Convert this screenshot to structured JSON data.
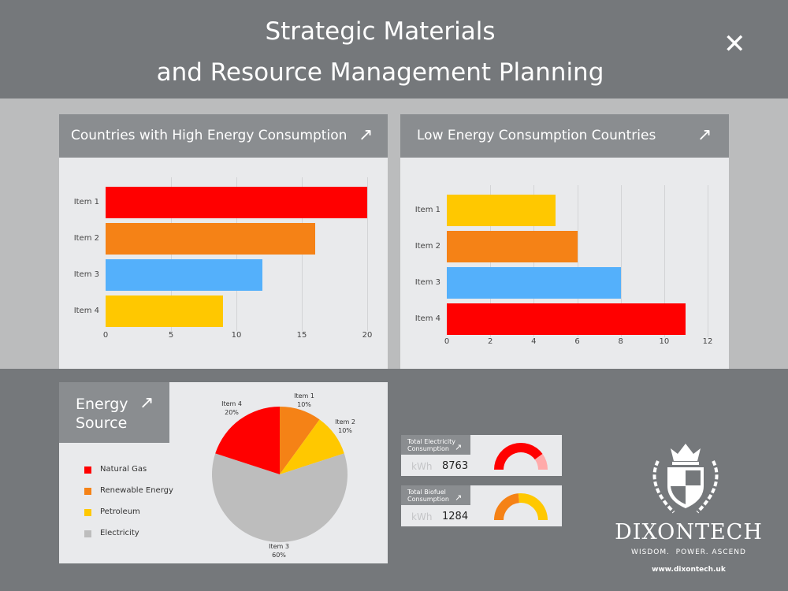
{
  "header": {
    "title_line1": "Strategic Materials",
    "title_line2": "and Resource Management Planning",
    "close_icon": "close-icon"
  },
  "colors": {
    "red": "#ff0000",
    "orange": "#f58216",
    "blue": "#54b0fb",
    "yellow": "#ffc800",
    "gray": "#bdbdbd",
    "light_red": "#ffaaaa"
  },
  "chart_data": [
    {
      "type": "bar",
      "orientation": "horizontal",
      "title": "Countries with High Energy Consumption",
      "categories": [
        "Item 1",
        "Item 2",
        "Item 3",
        "Item 4"
      ],
      "values": [
        20,
        16,
        12,
        9
      ],
      "colors": [
        "#ff0000",
        "#f58216",
        "#54b0fb",
        "#ffc800"
      ],
      "xlim": [
        0,
        20
      ],
      "xticks": [
        0,
        5,
        10,
        15,
        20
      ],
      "grid": true
    },
    {
      "type": "bar",
      "orientation": "horizontal",
      "title": "Low Energy Consumption Countries",
      "categories": [
        "Item 1",
        "Item 2",
        "Item 3",
        "Item 4"
      ],
      "values": [
        5,
        6,
        8,
        11
      ],
      "colors": [
        "#ffc800",
        "#f58216",
        "#54b0fb",
        "#ff0000"
      ],
      "xlim": [
        0,
        12
      ],
      "xticks": [
        0,
        2,
        4,
        6,
        8,
        10,
        12
      ],
      "grid": true
    },
    {
      "type": "pie",
      "title": "Energy Source",
      "slices": [
        {
          "label": "Item 1",
          "value": 10,
          "pct": "10%",
          "color": "#f58216"
        },
        {
          "label": "Item 2",
          "value": 10,
          "pct": "10%",
          "color": "#ffc800"
        },
        {
          "label": "Item 3",
          "value": 60,
          "pct": "60%",
          "color": "#bdbdbd"
        },
        {
          "label": "Item 4",
          "value": 20,
          "pct": "20%",
          "color": "#ff0000"
        }
      ],
      "legend": [
        {
          "label": "Natural Gas",
          "color": "#ff0000"
        },
        {
          "label": "Renewable Energy",
          "color": "#f58216"
        },
        {
          "label": "Petroleum",
          "color": "#ffc800"
        },
        {
          "label": "Electricity",
          "color": "#bdbdbd"
        }
      ]
    }
  ],
  "panels": {
    "energy_title_1": "Energy",
    "energy_title_2": "Source"
  },
  "kpis": [
    {
      "title_1": "Total Electricity",
      "title_2": "Consumption",
      "unit": "kWh",
      "value": "8763",
      "gauge_fraction": 0.8,
      "colors": [
        "#ff0000",
        "#ffaaaa"
      ]
    },
    {
      "title_1": "Total Biofuel",
      "title_2": "Consumption",
      "unit": "kWh",
      "value": "1284",
      "gauge_fraction": 0.47,
      "colors": [
        "#f58216",
        "#ffc800"
      ]
    }
  ],
  "brand": {
    "name": "DIXONTECH",
    "tagline": "WISDOM.  POWER. ASCEND",
    "url": "www.dixontech.uk"
  }
}
